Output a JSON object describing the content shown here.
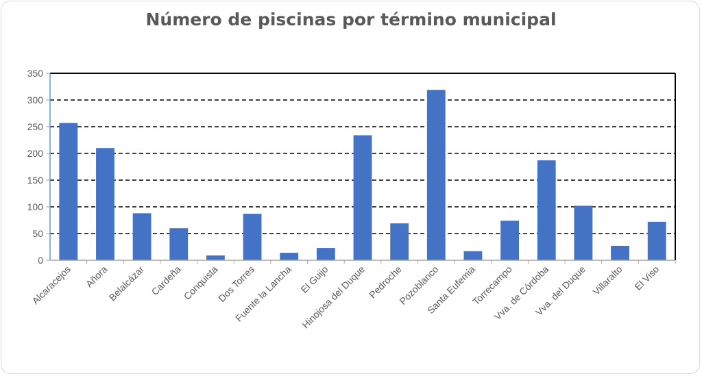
{
  "chart_data": {
    "type": "bar",
    "title": "Número de piscinas por término municipal",
    "categories": [
      "Alcaracejos",
      "Añora",
      "Belalcázar",
      "Cardeña",
      "Conquista",
      "Dos Torres",
      "Fuente la Lancha",
      "El Guijo",
      "Hinojosa del Duque",
      "Pedroche",
      "Pozoblanco",
      "Santa Eufemia",
      "Torrecampo",
      "Vva. de Córdoba",
      "Vva. del Duque",
      "Villaralto",
      "El Viso"
    ],
    "values": [
      257,
      210,
      88,
      60,
      9,
      87,
      14,
      23,
      234,
      69,
      319,
      17,
      74,
      187,
      102,
      27,
      72
    ],
    "xlabel": "",
    "ylabel": "",
    "ylim": [
      0,
      350
    ],
    "yticks": [
      0,
      50,
      100,
      150,
      200,
      250,
      300,
      350
    ],
    "grid": true,
    "legend": "none",
    "colors": {
      "bar": "#4472c4",
      "grid": "#000000",
      "text": "#595959"
    }
  }
}
